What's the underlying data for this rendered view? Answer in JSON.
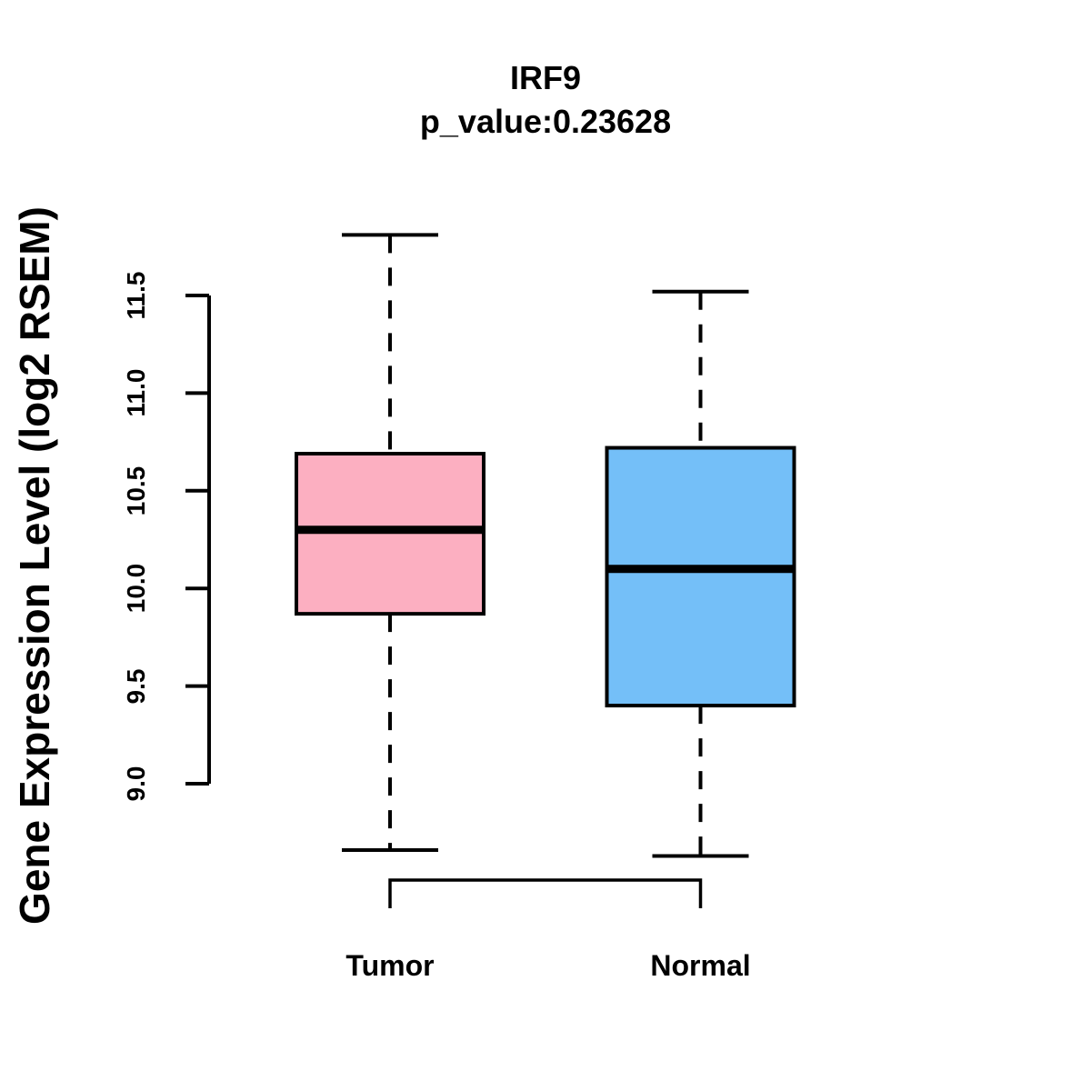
{
  "title": "IRF9",
  "subtitle": "p_value:0.23628",
  "y_axis": {
    "label": "Gene Expression Level (log2 RSEM)",
    "tick_labels": [
      "9.0",
      "9.5",
      "10.0",
      "10.5",
      "11.0",
      "11.5"
    ]
  },
  "x_axis": {
    "categories": [
      "Tumor",
      "Normal"
    ]
  },
  "chart_data": {
    "type": "boxplot",
    "title": "IRF9",
    "subtitle": "p_value:0.23628",
    "ylabel": "Gene Expression Level (log2 RSEM)",
    "categories": [
      "Tumor",
      "Normal"
    ],
    "yticks": [
      9.0,
      9.5,
      10.0,
      10.5,
      11.0,
      11.5
    ],
    "ytick_labels": [
      "9.0",
      "9.5",
      "10.0",
      "10.5",
      "11.0",
      "11.5"
    ],
    "ylim": [
      9.0,
      11.5
    ],
    "grid": false,
    "legend": "none",
    "series": [
      {
        "name": "Tumor",
        "whisker_low": 8.66,
        "q1": 9.87,
        "median": 10.3,
        "q3": 10.69,
        "whisker_high": 11.81,
        "fill": "#FCAFC1",
        "stroke": "#000000"
      },
      {
        "name": "Normal",
        "whisker_low": 8.63,
        "q1": 9.4,
        "median": 10.1,
        "q3": 10.72,
        "whisker_high": 11.52,
        "fill": "#74BFF8",
        "stroke": "#000000"
      }
    ]
  },
  "colors": {
    "axis": "#000000",
    "text": "#000000",
    "background": "#ffffff",
    "tumor_fill": "#FCAFC1",
    "normal_fill": "#74BFF8"
  }
}
